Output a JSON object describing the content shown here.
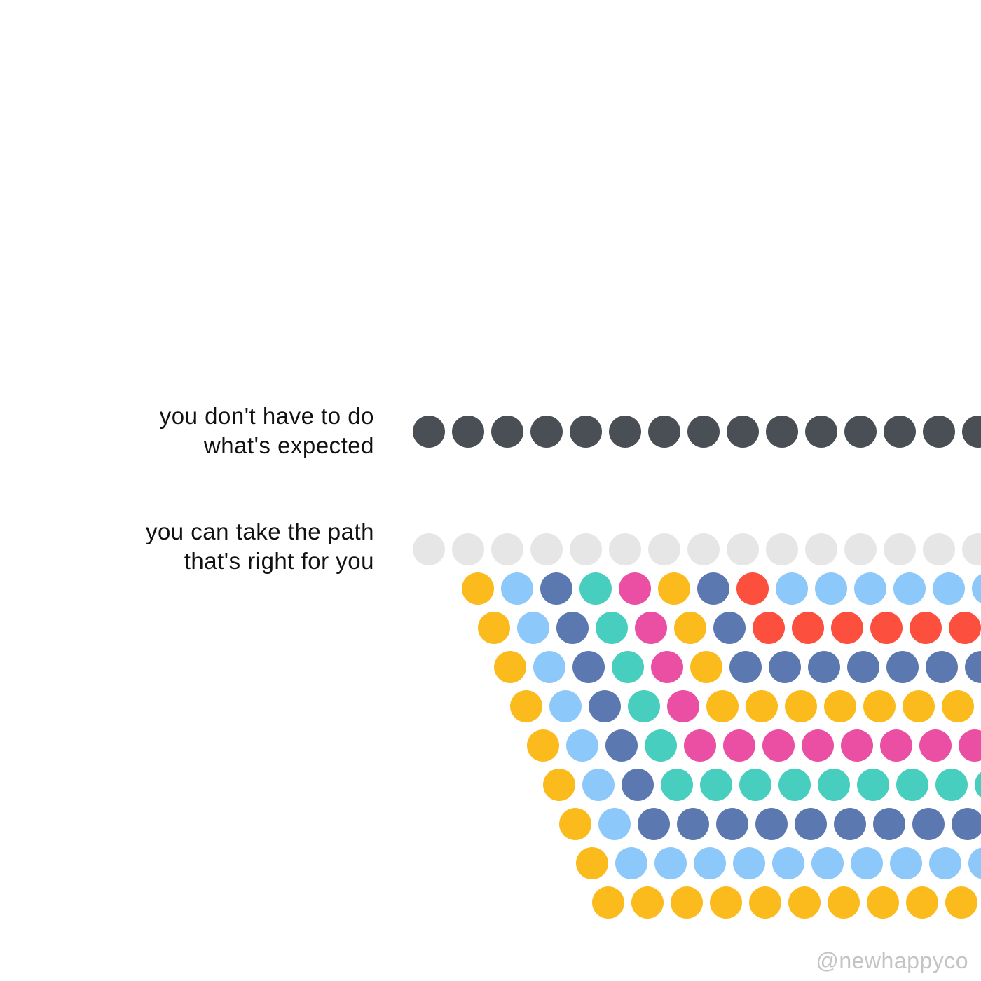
{
  "captions": {
    "top": {
      "line1": "you don't have to do",
      "line2": "what's expected"
    },
    "bottom": {
      "line1": "you can take the path",
      "line2": "that's right for you"
    }
  },
  "watermark": "@newhappyco",
  "colors": {
    "dark": "#4a4f55",
    "grey": "#e6e6e6",
    "yellow": "#fbbb1c",
    "lightblue": "#8dc8fa",
    "blue": "#5b79b0",
    "teal": "#47cebf",
    "pink": "#ea4fa4",
    "red": "#fd4f3d"
  },
  "dot_rows": [
    {
      "name": "expected-row",
      "colors": [
        "dark",
        "dark",
        "dark",
        "dark",
        "dark",
        "dark",
        "dark",
        "dark",
        "dark",
        "dark",
        "dark",
        "dark",
        "dark",
        "dark",
        "dark"
      ]
    },
    {
      "name": "path-grey-row",
      "colors": [
        "grey",
        "grey",
        "grey",
        "grey",
        "grey",
        "grey",
        "grey",
        "grey",
        "grey",
        "grey",
        "grey",
        "grey",
        "grey",
        "grey",
        "grey"
      ]
    },
    {
      "name": "path-row-1",
      "colors": [
        "yellow",
        "lightblue",
        "blue",
        "teal",
        "pink",
        "yellow",
        "blue",
        "red",
        "lightblue",
        "lightblue",
        "lightblue",
        "lightblue",
        "lightblue",
        "lightblue"
      ]
    },
    {
      "name": "path-row-2",
      "colors": [
        "yellow",
        "lightblue",
        "blue",
        "teal",
        "pink",
        "yellow",
        "blue",
        "red",
        "red",
        "red",
        "red",
        "red",
        "red"
      ]
    },
    {
      "name": "path-row-3",
      "colors": [
        "yellow",
        "lightblue",
        "blue",
        "teal",
        "pink",
        "yellow",
        "blue",
        "blue",
        "blue",
        "blue",
        "blue",
        "blue",
        "blue"
      ]
    },
    {
      "name": "path-row-4",
      "colors": [
        "yellow",
        "lightblue",
        "blue",
        "teal",
        "pink",
        "yellow",
        "yellow",
        "yellow",
        "yellow",
        "yellow",
        "yellow",
        "yellow"
      ]
    },
    {
      "name": "path-row-5",
      "colors": [
        "yellow",
        "lightblue",
        "blue",
        "teal",
        "pink",
        "pink",
        "pink",
        "pink",
        "pink",
        "pink",
        "pink",
        "pink"
      ]
    },
    {
      "name": "path-row-6",
      "colors": [
        "yellow",
        "lightblue",
        "blue",
        "teal",
        "teal",
        "teal",
        "teal",
        "teal",
        "teal",
        "teal",
        "teal",
        "teal"
      ]
    },
    {
      "name": "path-row-7",
      "colors": [
        "yellow",
        "lightblue",
        "blue",
        "blue",
        "blue",
        "blue",
        "blue",
        "blue",
        "blue",
        "blue",
        "blue"
      ]
    },
    {
      "name": "path-row-8",
      "colors": [
        "yellow",
        "lightblue",
        "lightblue",
        "lightblue",
        "lightblue",
        "lightblue",
        "lightblue",
        "lightblue",
        "lightblue",
        "lightblue",
        "lightblue"
      ]
    },
    {
      "name": "path-row-9",
      "colors": [
        "yellow",
        "yellow",
        "yellow",
        "yellow",
        "yellow",
        "yellow",
        "yellow",
        "yellow",
        "yellow",
        "yellow"
      ]
    }
  ]
}
